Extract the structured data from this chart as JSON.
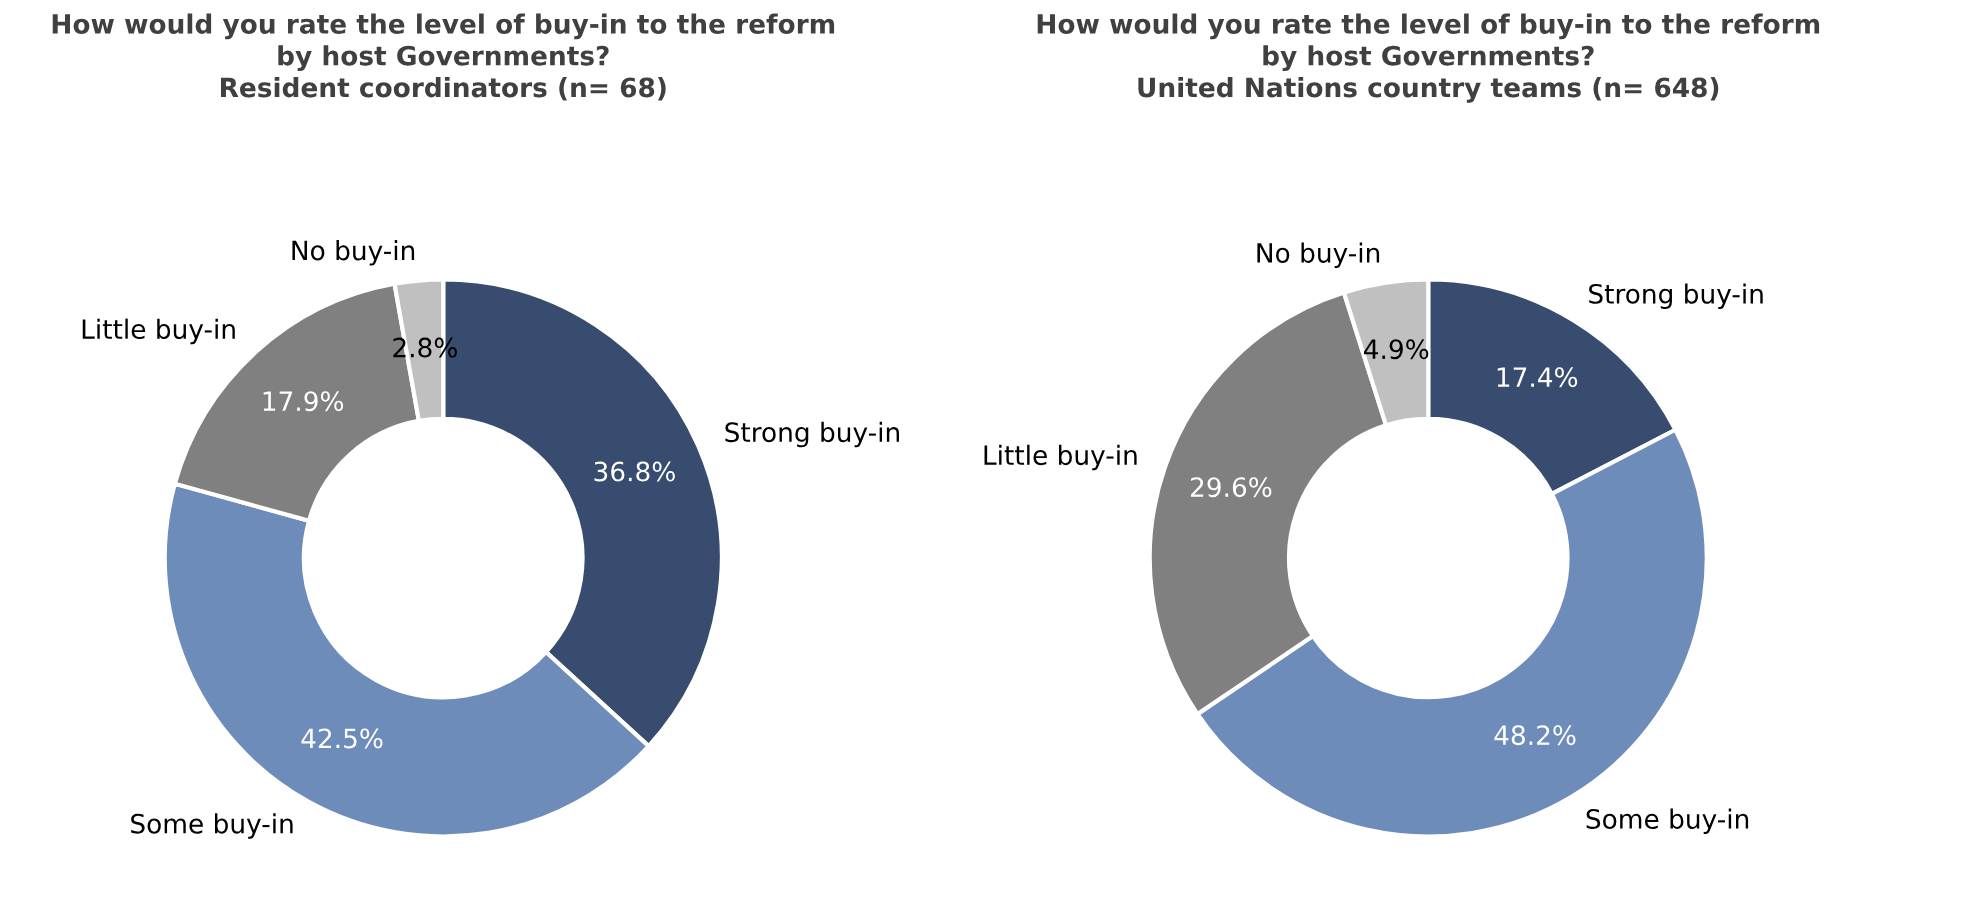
{
  "chart_data": [
    {
      "type": "donut",
      "title": "How would you rate the level of buy-in to the reform\nby host Governments?",
      "subtitle": "Resident coordinators (n= 68)",
      "categories": [
        "Strong buy-in",
        "Some buy-in",
        "Little buy-in",
        "No buy-in"
      ],
      "values": [
        36.8,
        42.5,
        17.9,
        2.8
      ],
      "value_labels": [
        "36.8%",
        "42.5%",
        "17.9%",
        "2.8%"
      ],
      "colors": [
        "#374c6e",
        "#6e8cba",
        "#808080",
        "#c0c0c0"
      ],
      "legend": false
    },
    {
      "type": "donut",
      "title": "How would you rate the level of buy-in to the reform\nby host Governments?",
      "subtitle": "United Nations country teams (n= 648)",
      "categories": [
        "Strong buy-in",
        "Some buy-in",
        "Little buy-in",
        "No buy-in"
      ],
      "values": [
        17.4,
        48.2,
        29.6,
        4.9
      ],
      "value_labels": [
        "17.4%",
        "48.2%",
        "29.6%",
        "4.9%"
      ],
      "colors": [
        "#374c6e",
        "#6e8cba",
        "#808080",
        "#c0c0c0"
      ],
      "legend": false
    }
  ]
}
